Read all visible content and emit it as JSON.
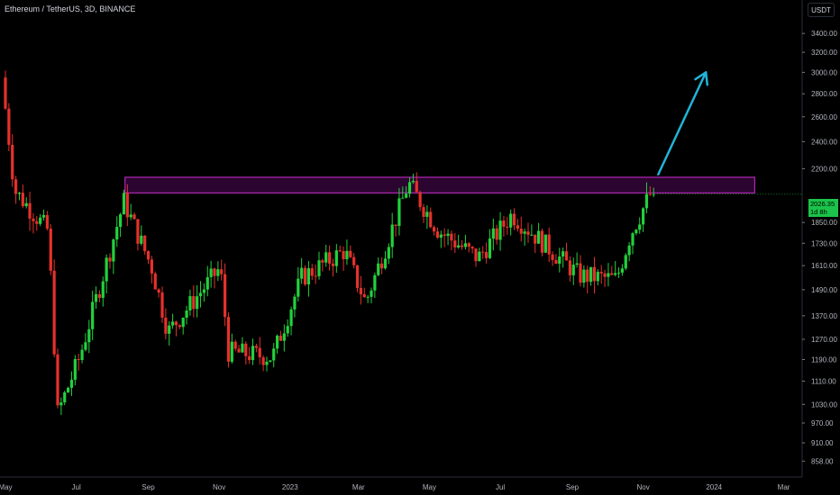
{
  "header": {
    "title": "Ethereum / TetherUS, 3D, BINANCE",
    "currency_label": "USDT"
  },
  "price_badge": {
    "price": "2026.35",
    "countdown": "1d 8h"
  },
  "colors": {
    "background": "#000000",
    "up": "#22d13d",
    "down": "#e5312b",
    "zone_border": "#d02fd3",
    "zone_fill": "#2b0530",
    "arrow": "#21b4d6",
    "axis_text": "#b2b5be",
    "badge": "#1bc34a"
  },
  "chart_data": {
    "type": "candlestick",
    "title": "Ethereum / TetherUS, 3D, BINANCE",
    "y_scale": "log",
    "ylim": [
      820,
      3700
    ],
    "y_ticks": [
      3400,
      3200,
      3000,
      2800,
      2600,
      2400,
      2200,
      1850,
      1730,
      1610,
      1490,
      1370,
      1270,
      1190,
      1110,
      1030,
      970,
      910,
      858
    ],
    "y_tick_labels": [
      "3400.00",
      "3200.00",
      "3000.00",
      "2800.00",
      "2600.00",
      "2400.00",
      "2200.00",
      "1850.00",
      "1730.00",
      "1610.00",
      "1490.00",
      "1370.00",
      "1270.00",
      "1190.00",
      "1110.00",
      "1030.00",
      "970.00",
      "910.00",
      "858.00"
    ],
    "x_ticks": [
      "2022-05-01",
      "2022-07-01",
      "2022-09-01",
      "2022-11-01",
      "2023-01-01",
      "2023-03-01",
      "2023-05-01",
      "2023-07-01",
      "2023-09-01",
      "2023-11-01",
      "2024-01-01",
      "2024-03-01"
    ],
    "x_tick_labels": [
      "May",
      "Jul",
      "Sep",
      "Nov",
      "2023",
      "Mar",
      "May",
      "Jul",
      "Sep",
      "Nov",
      "2024",
      "Mar"
    ],
    "x_range": [
      "2022-05-01",
      "2024-04-20"
    ],
    "last_price": 2026.35,
    "key_points": [
      {
        "date": "2022-05-01",
        "price": 2950
      },
      {
        "date": "2022-05-12",
        "price": 2050
      },
      {
        "date": "2022-06-10",
        "price": 1800
      },
      {
        "date": "2022-06-18",
        "price": 1000
      },
      {
        "date": "2022-07-07",
        "price": 1200
      },
      {
        "date": "2022-08-14",
        "price": 1980
      },
      {
        "date": "2022-09-07",
        "price": 1600
      },
      {
        "date": "2022-09-21",
        "price": 1300
      },
      {
        "date": "2022-11-05",
        "price": 1600
      },
      {
        "date": "2022-11-12",
        "price": 1220
      },
      {
        "date": "2022-12-20",
        "price": 1200
      },
      {
        "date": "2023-01-14",
        "price": 1550
      },
      {
        "date": "2023-02-20",
        "price": 1690
      },
      {
        "date": "2023-03-10",
        "price": 1430
      },
      {
        "date": "2023-04-16",
        "price": 2100
      },
      {
        "date": "2023-05-12",
        "price": 1800
      },
      {
        "date": "2023-06-15",
        "price": 1650
      },
      {
        "date": "2023-07-14",
        "price": 1900
      },
      {
        "date": "2023-08-17",
        "price": 1690
      },
      {
        "date": "2023-09-10",
        "price": 1560
      },
      {
        "date": "2023-10-12",
        "price": 1540
      },
      {
        "date": "2023-10-24",
        "price": 1780
      },
      {
        "date": "2023-11-10",
        "price": 2026
      }
    ],
    "resistance_zone": {
      "from": "2022-08-12",
      "to": "2024-02-05",
      "low": 2035,
      "high": 2140
    },
    "arrow": {
      "from_date": "2023-11-14",
      "from_price": 2160,
      "to_date": "2023-12-25",
      "to_price": 3000
    }
  }
}
